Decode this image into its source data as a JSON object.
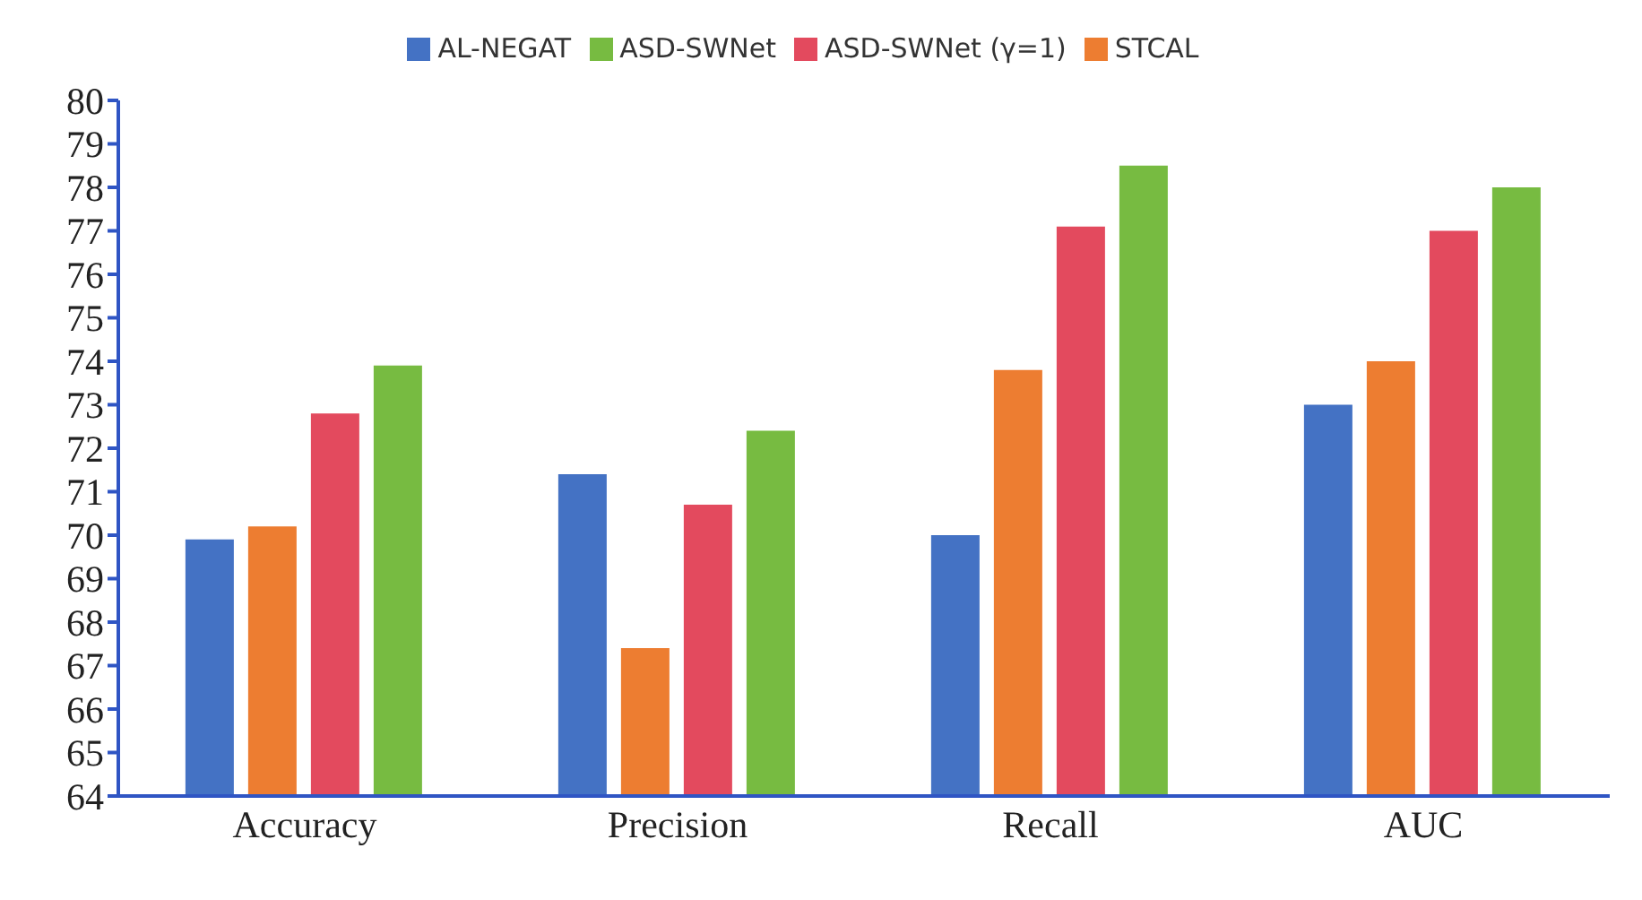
{
  "chart_data": {
    "type": "bar",
    "categories": [
      "Accuracy",
      "Precision",
      "Recall",
      "AUC"
    ],
    "series": [
      {
        "name": "AL-NEGAT",
        "color": "#4472c4",
        "values": [
          69.9,
          71.4,
          70.0,
          73.0
        ]
      },
      {
        "name": "STCAL",
        "color": "#ed7d31",
        "values": [
          70.2,
          67.4,
          73.8,
          74.0
        ]
      },
      {
        "name": "ASD-SWNet (γ=1)",
        "color": "#e34a5e",
        "values": [
          72.8,
          70.7,
          77.1,
          77.0
        ]
      },
      {
        "name": "ASD-SWNet",
        "color": "#77bb41",
        "values": [
          73.9,
          72.4,
          78.5,
          78.0
        ]
      }
    ],
    "ylim": [
      64,
      80
    ],
    "yticks": [
      64,
      65,
      66,
      67,
      68,
      69,
      70,
      71,
      72,
      73,
      74,
      75,
      76,
      77,
      78,
      79,
      80
    ],
    "grid": false,
    "legend": "top"
  }
}
